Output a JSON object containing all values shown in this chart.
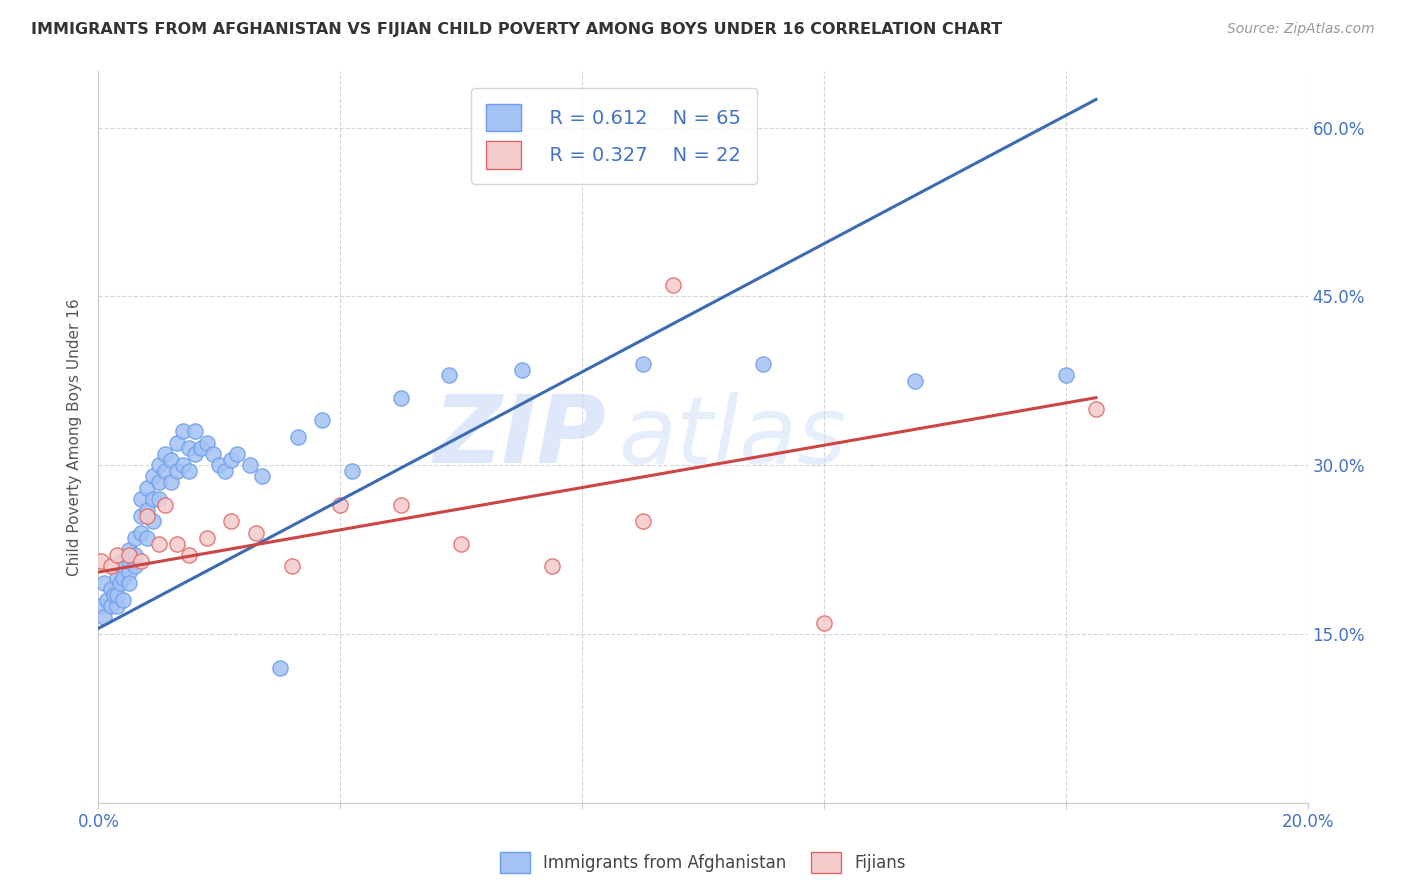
{
  "title": "IMMIGRANTS FROM AFGHANISTAN VS FIJIAN CHILD POVERTY AMONG BOYS UNDER 16 CORRELATION CHART",
  "source": "Source: ZipAtlas.com",
  "ylabel": "Child Poverty Among Boys Under 16",
  "xlim": [
    0.0,
    0.2
  ],
  "ylim": [
    0.0,
    0.65
  ],
  "xticks": [
    0.0,
    0.04,
    0.08,
    0.12,
    0.16,
    0.2
  ],
  "yticks": [
    0.0,
    0.15,
    0.3,
    0.45,
    0.6
  ],
  "background_color": "#ffffff",
  "grid_color": "#cccccc",
  "watermark_zip": "ZIP",
  "watermark_atlas": "atlas",
  "legend_R1": "R = 0.612",
  "legend_N1": "N = 65",
  "legend_R2": "R = 0.327",
  "legend_N2": "N = 22",
  "blue_face": "#a4c2f4",
  "blue_edge": "#6d9eeb",
  "pink_face": "#f4cccc",
  "pink_edge": "#e06666",
  "line_blue": "#3d6bb3",
  "line_pink": "#cc4444",
  "blue_scatter_x": [
    0.0005,
    0.001,
    0.001,
    0.0015,
    0.002,
    0.002,
    0.0025,
    0.003,
    0.003,
    0.003,
    0.0035,
    0.004,
    0.004,
    0.004,
    0.005,
    0.005,
    0.005,
    0.005,
    0.006,
    0.006,
    0.006,
    0.007,
    0.007,
    0.007,
    0.008,
    0.008,
    0.008,
    0.009,
    0.009,
    0.009,
    0.01,
    0.01,
    0.01,
    0.011,
    0.011,
    0.012,
    0.012,
    0.013,
    0.013,
    0.014,
    0.014,
    0.015,
    0.015,
    0.016,
    0.016,
    0.017,
    0.018,
    0.019,
    0.02,
    0.021,
    0.022,
    0.023,
    0.025,
    0.027,
    0.03,
    0.033,
    0.037,
    0.042,
    0.05,
    0.058,
    0.07,
    0.09,
    0.11,
    0.135,
    0.16
  ],
  "blue_scatter_y": [
    0.175,
    0.165,
    0.195,
    0.18,
    0.175,
    0.19,
    0.185,
    0.175,
    0.2,
    0.185,
    0.195,
    0.18,
    0.2,
    0.215,
    0.205,
    0.195,
    0.215,
    0.225,
    0.21,
    0.22,
    0.235,
    0.24,
    0.255,
    0.27,
    0.235,
    0.26,
    0.28,
    0.25,
    0.27,
    0.29,
    0.27,
    0.285,
    0.3,
    0.295,
    0.31,
    0.285,
    0.305,
    0.295,
    0.32,
    0.3,
    0.33,
    0.295,
    0.315,
    0.31,
    0.33,
    0.315,
    0.32,
    0.31,
    0.3,
    0.295,
    0.305,
    0.31,
    0.3,
    0.29,
    0.12,
    0.325,
    0.34,
    0.295,
    0.36,
    0.38,
    0.385,
    0.39,
    0.39,
    0.375,
    0.38
  ],
  "pink_scatter_x": [
    0.0005,
    0.002,
    0.003,
    0.005,
    0.007,
    0.008,
    0.01,
    0.011,
    0.013,
    0.015,
    0.018,
    0.022,
    0.026,
    0.032,
    0.04,
    0.05,
    0.06,
    0.075,
    0.09,
    0.095,
    0.12,
    0.165
  ],
  "pink_scatter_y": [
    0.215,
    0.21,
    0.22,
    0.22,
    0.215,
    0.255,
    0.23,
    0.265,
    0.23,
    0.22,
    0.235,
    0.25,
    0.24,
    0.21,
    0.265,
    0.265,
    0.23,
    0.21,
    0.25,
    0.46,
    0.16,
    0.35
  ],
  "blue_line_x": [
    0.0,
    0.165
  ],
  "blue_line_y": [
    0.155,
    0.625
  ],
  "pink_line_x": [
    0.0,
    0.165
  ],
  "pink_line_y": [
    0.205,
    0.36
  ]
}
